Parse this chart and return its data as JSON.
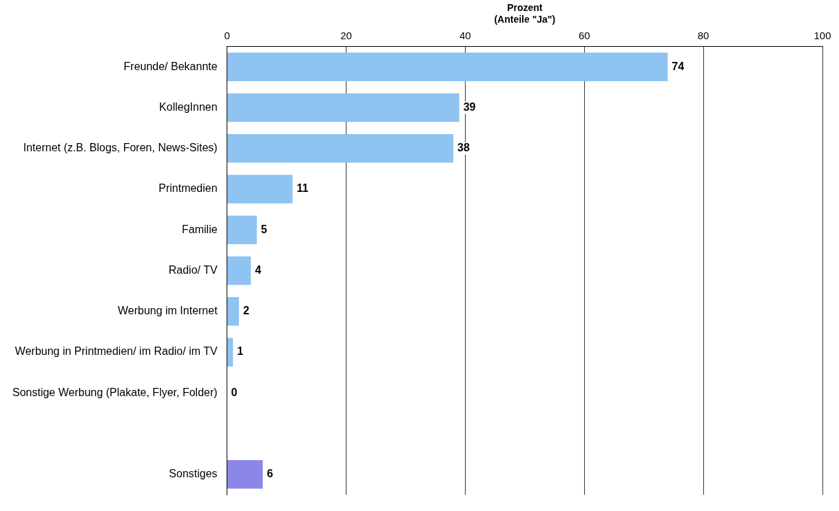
{
  "chart_data": {
    "type": "bar",
    "orientation": "horizontal",
    "xlabel": "Prozent\n(Anteile \"Ja\")",
    "categories": [
      "Freunde/ Bekannte",
      "KollegInnen",
      "Internet (z.B. Blogs, Foren, News-Sites)",
      "Printmedien",
      "Familie",
      "Radio/ TV",
      "Werbung im Internet",
      "Werbung in Printmedien/ im Radio/ im TV",
      "Sonstige Werbung (Plakate, Flyer, Folder)",
      null,
      "Sonstiges"
    ],
    "values": [
      74,
      39,
      38,
      11,
      5,
      4,
      2,
      1,
      0,
      null,
      6
    ],
    "colors": [
      "#8ec3f2",
      "#8ec3f2",
      "#8ec3f2",
      "#8ec3f2",
      "#8ec3f2",
      "#8ec3f2",
      "#8ec3f2",
      "#8ec3f2",
      "#8ec3f2",
      "#8ec3f2",
      "#8c86e8"
    ],
    "xlim": [
      0,
      100
    ],
    "xticks": [
      0,
      20,
      40,
      60,
      80,
      100
    ],
    "grid": "x",
    "data_labels": true,
    "legend": false
  }
}
